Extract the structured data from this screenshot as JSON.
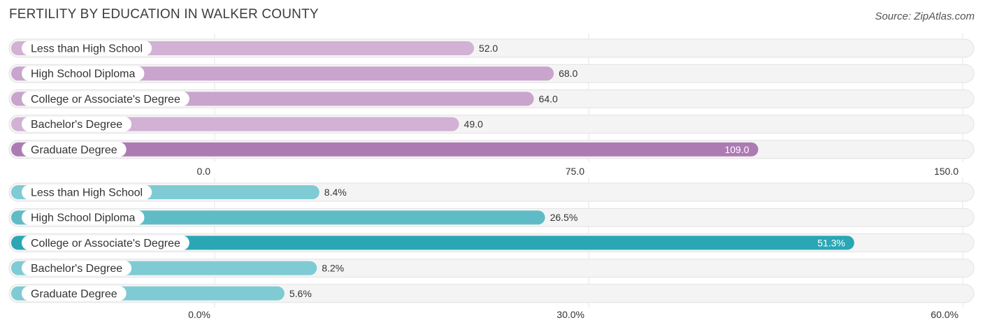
{
  "title": "FERTILITY BY EDUCATION IN WALKER COUNTY",
  "source": "Source: ZipAtlas.com",
  "chart_data": [
    {
      "type": "bar",
      "orientation": "horizontal",
      "categories": [
        "Less than High School",
        "High School Diploma",
        "College or Associate's Degree",
        "Bachelor's Degree",
        "Graduate Degree"
      ],
      "values": [
        52.0,
        68.0,
        64.0,
        49.0,
        109.0
      ],
      "value_labels": [
        "52.0",
        "68.0",
        "64.0",
        "49.0",
        "109.0"
      ],
      "xlim": [
        0,
        150
      ],
      "tick_values": [
        0,
        75,
        150
      ],
      "tick_labels": [
        "0.0",
        "75.0",
        "150.0"
      ],
      "grid": true,
      "colors": [
        "#d2b1d5",
        "#c9a4cc",
        "#c9a4cc",
        "#d2b1d5",
        "#ad7bb4"
      ],
      "highlight_index": 4
    },
    {
      "type": "bar",
      "orientation": "horizontal",
      "categories": [
        "Less than High School",
        "High School Diploma",
        "College or Associate's Degree",
        "Bachelor's Degree",
        "Graduate Degree"
      ],
      "values": [
        8.4,
        26.5,
        51.3,
        8.2,
        5.6
      ],
      "value_labels": [
        "8.4%",
        "26.5%",
        "51.3%",
        "8.2%",
        "5.6%"
      ],
      "xlim": [
        0,
        60
      ],
      "tick_values": [
        0,
        30,
        60
      ],
      "tick_labels": [
        "0.0%",
        "30.0%",
        "60.0%"
      ],
      "grid": true,
      "colors": [
        "#7fcbd4",
        "#5fbcc7",
        "#2aa6b5",
        "#7fcbd4",
        "#7fcbd4"
      ],
      "highlight_index": 2
    }
  ]
}
